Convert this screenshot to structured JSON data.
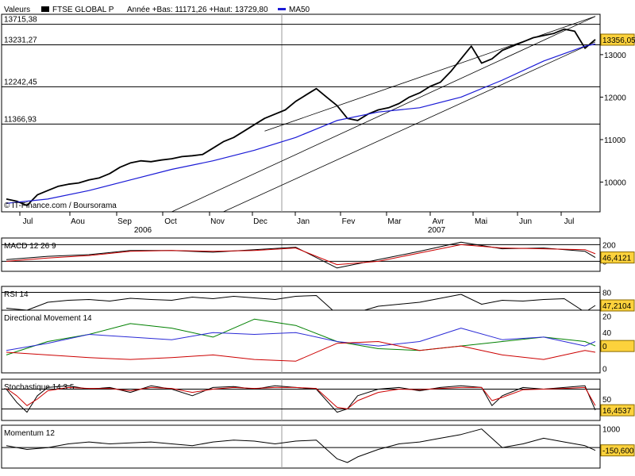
{
  "chart_data": {
    "type": "line",
    "instrument": "FTSE GLOBAL P",
    "header": {
      "values_label": "Valeurs",
      "annual_info": "Année +Bas: 11171,26 +Haut: 13729,80",
      "ma_legend": "MA50"
    },
    "credit": "© IT-Finance.com / Boursorama",
    "x_axis": {
      "months": [
        "Jul",
        "Aou",
        "Sep",
        "Oct",
        "Nov",
        "Dec",
        "Jan",
        "Fev",
        "Mar",
        "Avr",
        "Mai",
        "Jun",
        "Jul"
      ],
      "years": [
        "2006",
        "2007"
      ],
      "period_weeks": [
        0,
        57
      ]
    },
    "main": {
      "ylim": [
        9300,
        13950
      ],
      "y_ticks": [
        "10000",
        "11000",
        "12000",
        "13000"
      ],
      "y_tick_values": [
        10000,
        11000,
        12000,
        13000
      ],
      "levels": [
        {
          "label": "13715,38",
          "value": 13715.38
        },
        {
          "label": "13231,27",
          "value": 13231.27
        },
        {
          "label": "12242,45",
          "value": 12242.45
        },
        {
          "label": "11366,93",
          "value": 11366.93
        }
      ],
      "last_value": "13356,05",
      "series": [
        {
          "name": "FTSE GLOBAL P",
          "color": "#000000",
          "x": [
            0,
            1,
            2,
            3,
            4,
            5,
            6,
            7,
            8,
            9,
            10,
            11,
            12,
            13,
            14,
            15,
            16,
            17,
            18,
            19,
            20,
            21,
            22,
            23,
            24,
            25,
            26,
            27,
            28,
            29,
            30,
            31,
            32,
            33,
            34,
            35,
            36,
            37,
            38,
            39,
            40,
            41,
            42,
            43,
            44,
            45,
            46,
            47,
            48,
            49,
            50,
            51,
            52,
            53,
            54,
            55,
            56,
            57
          ],
          "y": [
            9600,
            9550,
            9450,
            9700,
            9800,
            9900,
            9950,
            9980,
            10050,
            10100,
            10200,
            10350,
            10450,
            10500,
            10480,
            10520,
            10550,
            10600,
            10620,
            10650,
            10800,
            10950,
            11050,
            11200,
            11350,
            11500,
            11600,
            11700,
            11900,
            12050,
            12200,
            12000,
            11800,
            11500,
            11450,
            11600,
            11700,
            11750,
            11850,
            12000,
            12100,
            12250,
            12350,
            12600,
            12900,
            13200,
            12800,
            12900,
            13100,
            13200,
            13300,
            13400,
            13450,
            13500,
            13600,
            13550,
            13150,
            13356
          ]
        },
        {
          "name": "MA50",
          "color": "#1a1ad6",
          "x": [
            0,
            4,
            8,
            12,
            16,
            20,
            24,
            28,
            32,
            36,
            40,
            44,
            48,
            52,
            56,
            57
          ],
          "y": [
            9500,
            9600,
            9800,
            10050,
            10300,
            10500,
            10750,
            11050,
            11450,
            11650,
            11750,
            12000,
            12400,
            12850,
            13200,
            13250
          ]
        }
      ],
      "trendlines": [
        {
          "from": [
            16,
            9300
          ],
          "to": [
            57,
            13900
          ]
        },
        {
          "from": [
            21,
            9300
          ],
          "to": [
            57,
            13300
          ]
        },
        {
          "from": [
            25,
            11200
          ],
          "to": [
            57,
            13900
          ]
        }
      ]
    },
    "indicators": [
      {
        "name": "MACD 12 26 9",
        "ticks": [
          "200",
          "0"
        ],
        "tick_values": [
          200,
          0
        ],
        "ylim": [
          -120,
          280
        ],
        "ref_lines": [
          200,
          0
        ],
        "last_value": "46,4121",
        "series": [
          {
            "color": "#000000",
            "x": [
              0,
              4,
              8,
              12,
              16,
              20,
              24,
              28,
              32,
              36,
              40,
              44,
              48,
              52,
              56,
              57
            ],
            "y": [
              20,
              60,
              80,
              130,
              130,
              110,
              140,
              170,
              -80,
              20,
              120,
              230,
              150,
              160,
              120,
              46
            ]
          },
          {
            "color": "#cc0000",
            "x": [
              0,
              4,
              8,
              12,
              16,
              20,
              24,
              28,
              32,
              36,
              40,
              44,
              48,
              52,
              56,
              57
            ],
            "y": [
              0,
              40,
              70,
              120,
              130,
              120,
              130,
              160,
              -40,
              0,
              100,
              200,
              160,
              150,
              140,
              90
            ]
          }
        ]
      },
      {
        "name": "RSI 14",
        "ticks": [
          "80",
          "20"
        ],
        "tick_values": [
          80,
          20
        ],
        "ylim": [
          5,
          95
        ],
        "ref_lines": [
          80,
          20
        ],
        "last_value": "47,2104",
        "series": [
          {
            "color": "#000000",
            "x": [
              0,
              2,
              4,
              6,
              8,
              10,
              12,
              14,
              16,
              18,
              20,
              22,
              24,
              26,
              28,
              30,
              32,
              34,
              36,
              38,
              40,
              42,
              44,
              46,
              48,
              50,
              52,
              54,
              56,
              57
            ],
            "y": [
              40,
              35,
              55,
              60,
              62,
              58,
              65,
              62,
              60,
              68,
              64,
              70,
              66,
              62,
              70,
              72,
              25,
              30,
              45,
              50,
              55,
              65,
              75,
              50,
              60,
              58,
              62,
              64,
              30,
              47
            ]
          }
        ]
      },
      {
        "name": "Directional Movement 14",
        "ticks": [
          "40",
          "0"
        ],
        "tick_values": [
          40,
          0
        ],
        "ylim": [
          -5,
          65
        ],
        "ref_lines": [],
        "last_value": "0",
        "series": [
          {
            "color": "#008000",
            "x": [
              0,
              4,
              8,
              12,
              16,
              20,
              24,
              28,
              32,
              36,
              40,
              44,
              48,
              52,
              56,
              57
            ],
            "y": [
              15,
              30,
              38,
              50,
              45,
              35,
              55,
              48,
              30,
              22,
              20,
              25,
              30,
              35,
              30,
              25
            ]
          },
          {
            "color": "#2a2ad6",
            "x": [
              0,
              4,
              8,
              12,
              16,
              20,
              24,
              28,
              32,
              36,
              40,
              44,
              48,
              52,
              56,
              57
            ],
            "y": [
              20,
              28,
              38,
              35,
              32,
              40,
              38,
              40,
              30,
              25,
              30,
              45,
              32,
              35,
              25,
              30
            ]
          },
          {
            "color": "#cc0000",
            "x": [
              0,
              4,
              8,
              12,
              16,
              20,
              24,
              28,
              32,
              36,
              40,
              44,
              48,
              52,
              56,
              57
            ],
            "y": [
              18,
              15,
              12,
              10,
              12,
              15,
              10,
              8,
              28,
              30,
              20,
              25,
              15,
              10,
              20,
              18
            ]
          }
        ]
      },
      {
        "name": "Stochastique 14 3 5",
        "ticks": [
          "50"
        ],
        "tick_values": [
          50
        ],
        "ylim": [
          -15,
          110
        ],
        "ref_lines": [
          80,
          20
        ],
        "last_value": "16,4537",
        "series": [
          {
            "color": "#000000",
            "x": [
              0,
              1,
              2,
              3,
              4,
              6,
              8,
              10,
              12,
              14,
              16,
              18,
              20,
              22,
              24,
              26,
              28,
              30,
              32,
              33,
              34,
              36,
              38,
              40,
              42,
              44,
              46,
              47,
              48,
              50,
              52,
              54,
              56,
              57
            ],
            "y": [
              80,
              40,
              10,
              60,
              85,
              90,
              80,
              85,
              70,
              90,
              80,
              60,
              85,
              88,
              80,
              90,
              85,
              80,
              10,
              20,
              60,
              80,
              85,
              75,
              85,
              90,
              85,
              30,
              60,
              85,
              80,
              85,
              90,
              16
            ]
          },
          {
            "color": "#cc0000",
            "x": [
              0,
              1,
              2,
              3,
              4,
              6,
              8,
              10,
              12,
              14,
              16,
              18,
              20,
              22,
              24,
              26,
              28,
              30,
              32,
              33,
              34,
              36,
              38,
              40,
              42,
              44,
              46,
              47,
              48,
              50,
              52,
              54,
              56,
              57
            ],
            "y": [
              82,
              60,
              30,
              50,
              75,
              85,
              82,
              82,
              75,
              85,
              82,
              70,
              80,
              85,
              82,
              85,
              85,
              82,
              25,
              20,
              45,
              70,
              80,
              78,
              82,
              85,
              85,
              45,
              55,
              78,
              80,
              82,
              85,
              30
            ]
          }
        ]
      },
      {
        "name": "Momentum 12",
        "ticks": [
          "1000",
          "0"
        ],
        "tick_values": [
          1000,
          0
        ],
        "ylim": [
          -1100,
          1200
        ],
        "ref_lines": [
          0
        ],
        "last_value": "-150,600",
        "series": [
          {
            "color": "#000000",
            "x": [
              0,
              2,
              4,
              6,
              8,
              10,
              12,
              14,
              16,
              18,
              20,
              22,
              24,
              26,
              28,
              30,
              32,
              33,
              34,
              36,
              38,
              40,
              42,
              44,
              46,
              48,
              50,
              52,
              54,
              56,
              57
            ],
            "y": [
              100,
              -100,
              0,
              200,
              300,
              200,
              250,
              300,
              200,
              100,
              300,
              400,
              350,
              200,
              350,
              400,
              -600,
              -800,
              -500,
              -100,
              200,
              300,
              500,
              700,
              1000,
              0,
              200,
              500,
              300,
              100,
              -150
            ]
          }
        ]
      }
    ]
  }
}
